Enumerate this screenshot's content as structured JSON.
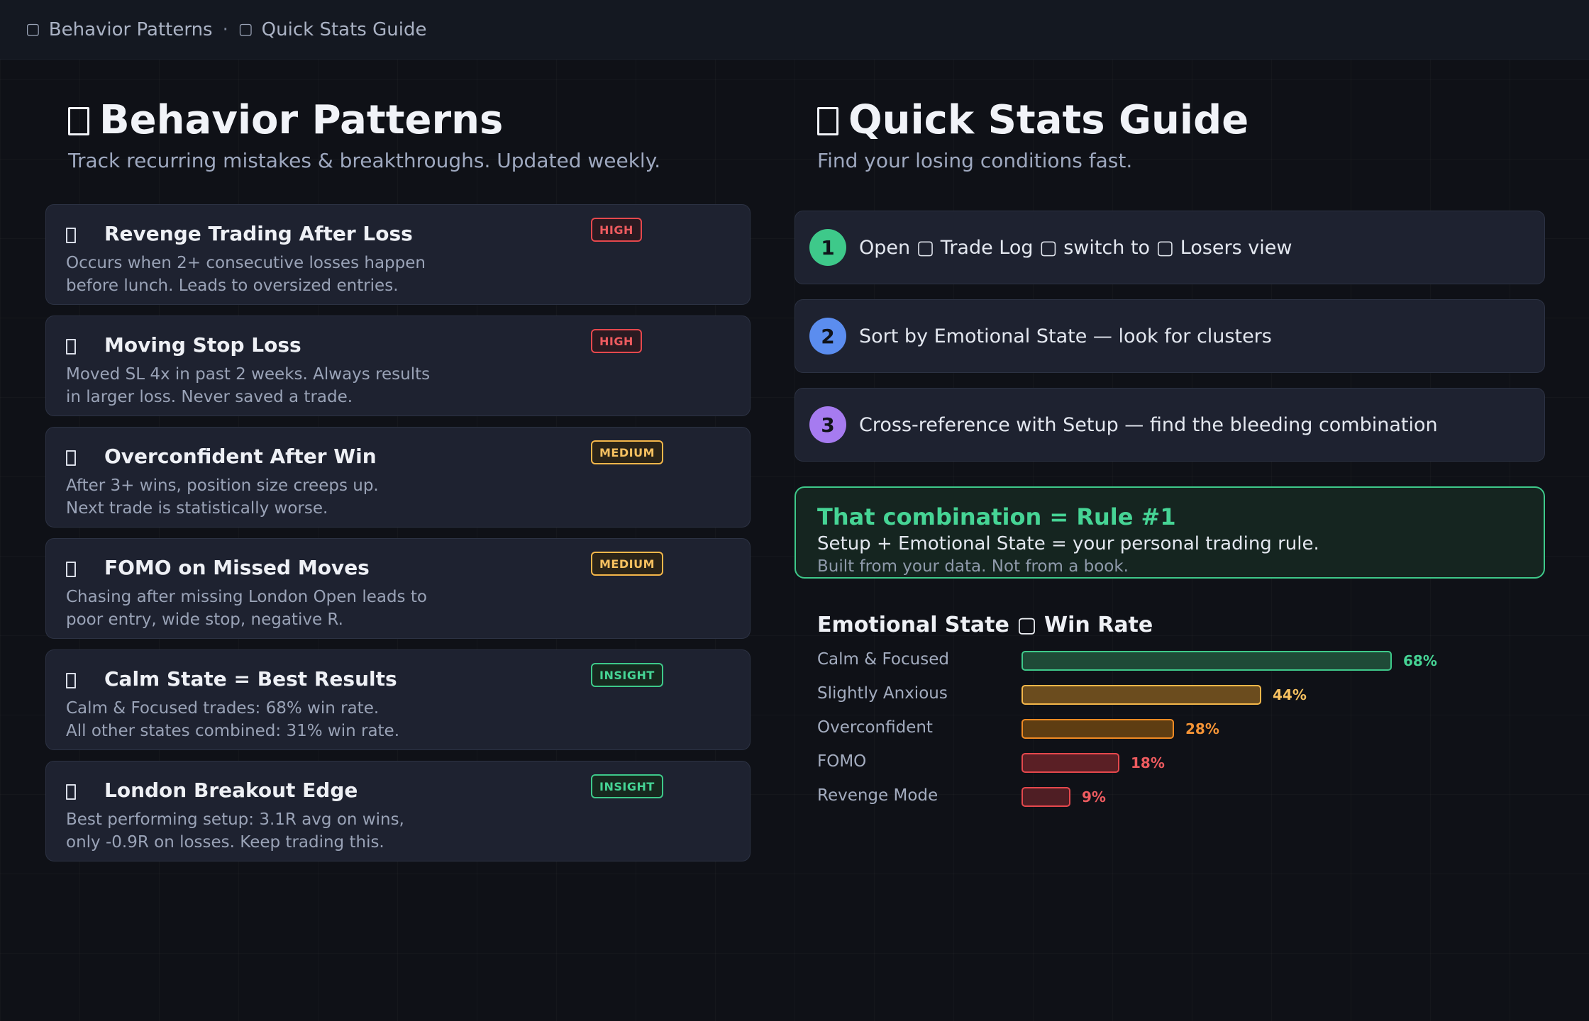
{
  "breadcrumb": {
    "item1": "Behavior Patterns",
    "separator": "·",
    "item2": "Quick Stats Guide"
  },
  "left": {
    "title": "Behavior Patterns",
    "subtitle": "Track recurring mistakes & breakthroughs. Updated weekly.",
    "patterns": [
      {
        "title": "Revenge Trading After Loss",
        "desc1": "Occurs when 2+ consecutive losses happen",
        "desc2": "before lunch. Leads to oversized entries.",
        "badge": "HIGH",
        "severity": "high"
      },
      {
        "title": "Moving Stop Loss",
        "desc1": "Moved SL 4x in past 2 weeks. Always results",
        "desc2": "in larger loss. Never saved a trade.",
        "badge": "HIGH",
        "severity": "high"
      },
      {
        "title": "Overconfident After Win",
        "desc1": "After 3+ wins, position size creeps up.",
        "desc2": "Next trade is statistically worse.",
        "badge": "MEDIUM",
        "severity": "medium"
      },
      {
        "title": "FOMO on Missed Moves",
        "desc1": "Chasing after missing London Open leads to",
        "desc2": "poor entry, wide stop, negative R.",
        "badge": "MEDIUM",
        "severity": "medium"
      },
      {
        "title": "Calm State = Best Results",
        "desc1": "Calm & Focused trades: 68% win rate.",
        "desc2": "All other states combined: 31% win rate.",
        "badge": "INSIGHT",
        "severity": "insight"
      },
      {
        "title": "London Breakout Edge",
        "desc1": "Best performing setup: 3.1R avg on wins,",
        "desc2": "only -0.9R on losses. Keep trading this.",
        "badge": "INSIGHT",
        "severity": "insight"
      }
    ]
  },
  "right": {
    "title": "Quick Stats Guide",
    "subtitle": "Find your losing conditions fast.",
    "steps": [
      {
        "num": "1",
        "text": "Open ▢ Trade Log ▢ switch to ▢ Losers view",
        "color": "#3ec98a"
      },
      {
        "num": "2",
        "text": "Sort by Emotional State — look for clusters",
        "color": "#5b8def"
      },
      {
        "num": "3",
        "text": "Cross-reference with Setup — find the bleeding combination",
        "color": "#a67bf0"
      }
    ],
    "rule": {
      "title": "That combination = Rule #1",
      "line": "Setup + Emotional State = your personal trading rule.",
      "sub": "Built from your data. Not from a book."
    }
  },
  "chart_data": {
    "type": "bar",
    "title": "Emotional State ▢ Win Rate",
    "categories": [
      "Calm & Focused",
      "Slightly Anxious",
      "Overconfident",
      "FOMO",
      "Revenge Mode"
    ],
    "values": [
      68,
      44,
      28,
      18,
      9
    ],
    "value_labels": [
      "68%",
      "44%",
      "28%",
      "18%",
      "9%"
    ],
    "unit": "%",
    "colors": [
      {
        "fill": "#1f4a37",
        "stroke": "#3ec98a",
        "text": "#46d495"
      },
      {
        "fill": "#6b4c1e",
        "stroke": "#f5b74a",
        "text": "#f7c160"
      },
      {
        "fill": "#5e3d12",
        "stroke": "#f08a24",
        "text": "#f59436"
      },
      {
        "fill": "#5a1f25",
        "stroke": "#e5484d",
        "text": "#ee5b5f"
      },
      {
        "fill": "#4f1e24",
        "stroke": "#e5484d",
        "text": "#ee5b5f"
      }
    ]
  }
}
